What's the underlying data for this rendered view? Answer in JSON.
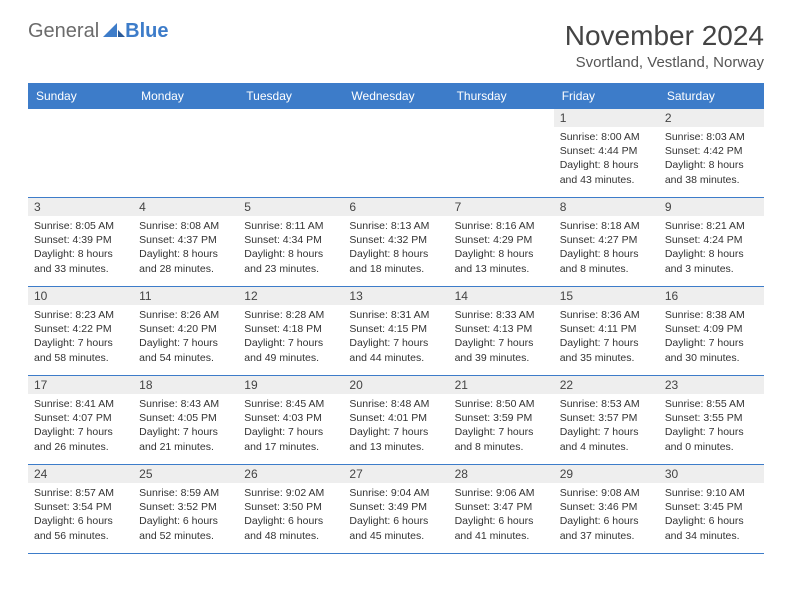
{
  "brand": {
    "word1": "General",
    "word2": "Blue"
  },
  "title": "November 2024",
  "location": "Svortland, Vestland, Norway",
  "colors": {
    "header_bg": "#3d7cc9",
    "header_fg": "#ffffff",
    "daynum_bg": "#eeeeee",
    "rule": "#3d7cc9",
    "text": "#333333",
    "background": "#ffffff"
  },
  "weekdays": [
    "Sunday",
    "Monday",
    "Tuesday",
    "Wednesday",
    "Thursday",
    "Friday",
    "Saturday"
  ],
  "weeks": [
    [
      null,
      null,
      null,
      null,
      null,
      {
        "n": "1",
        "sr": "8:00 AM",
        "ss": "4:44 PM",
        "dl": "8 hours and 43 minutes."
      },
      {
        "n": "2",
        "sr": "8:03 AM",
        "ss": "4:42 PM",
        "dl": "8 hours and 38 minutes."
      }
    ],
    [
      {
        "n": "3",
        "sr": "8:05 AM",
        "ss": "4:39 PM",
        "dl": "8 hours and 33 minutes."
      },
      {
        "n": "4",
        "sr": "8:08 AM",
        "ss": "4:37 PM",
        "dl": "8 hours and 28 minutes."
      },
      {
        "n": "5",
        "sr": "8:11 AM",
        "ss": "4:34 PM",
        "dl": "8 hours and 23 minutes."
      },
      {
        "n": "6",
        "sr": "8:13 AM",
        "ss": "4:32 PM",
        "dl": "8 hours and 18 minutes."
      },
      {
        "n": "7",
        "sr": "8:16 AM",
        "ss": "4:29 PM",
        "dl": "8 hours and 13 minutes."
      },
      {
        "n": "8",
        "sr": "8:18 AM",
        "ss": "4:27 PM",
        "dl": "8 hours and 8 minutes."
      },
      {
        "n": "9",
        "sr": "8:21 AM",
        "ss": "4:24 PM",
        "dl": "8 hours and 3 minutes."
      }
    ],
    [
      {
        "n": "10",
        "sr": "8:23 AM",
        "ss": "4:22 PM",
        "dl": "7 hours and 58 minutes."
      },
      {
        "n": "11",
        "sr": "8:26 AM",
        "ss": "4:20 PM",
        "dl": "7 hours and 54 minutes."
      },
      {
        "n": "12",
        "sr": "8:28 AM",
        "ss": "4:18 PM",
        "dl": "7 hours and 49 minutes."
      },
      {
        "n": "13",
        "sr": "8:31 AM",
        "ss": "4:15 PM",
        "dl": "7 hours and 44 minutes."
      },
      {
        "n": "14",
        "sr": "8:33 AM",
        "ss": "4:13 PM",
        "dl": "7 hours and 39 minutes."
      },
      {
        "n": "15",
        "sr": "8:36 AM",
        "ss": "4:11 PM",
        "dl": "7 hours and 35 minutes."
      },
      {
        "n": "16",
        "sr": "8:38 AM",
        "ss": "4:09 PM",
        "dl": "7 hours and 30 minutes."
      }
    ],
    [
      {
        "n": "17",
        "sr": "8:41 AM",
        "ss": "4:07 PM",
        "dl": "7 hours and 26 minutes."
      },
      {
        "n": "18",
        "sr": "8:43 AM",
        "ss": "4:05 PM",
        "dl": "7 hours and 21 minutes."
      },
      {
        "n": "19",
        "sr": "8:45 AM",
        "ss": "4:03 PM",
        "dl": "7 hours and 17 minutes."
      },
      {
        "n": "20",
        "sr": "8:48 AM",
        "ss": "4:01 PM",
        "dl": "7 hours and 13 minutes."
      },
      {
        "n": "21",
        "sr": "8:50 AM",
        "ss": "3:59 PM",
        "dl": "7 hours and 8 minutes."
      },
      {
        "n": "22",
        "sr": "8:53 AM",
        "ss": "3:57 PM",
        "dl": "7 hours and 4 minutes."
      },
      {
        "n": "23",
        "sr": "8:55 AM",
        "ss": "3:55 PM",
        "dl": "7 hours and 0 minutes."
      }
    ],
    [
      {
        "n": "24",
        "sr": "8:57 AM",
        "ss": "3:54 PM",
        "dl": "6 hours and 56 minutes."
      },
      {
        "n": "25",
        "sr": "8:59 AM",
        "ss": "3:52 PM",
        "dl": "6 hours and 52 minutes."
      },
      {
        "n": "26",
        "sr": "9:02 AM",
        "ss": "3:50 PM",
        "dl": "6 hours and 48 minutes."
      },
      {
        "n": "27",
        "sr": "9:04 AM",
        "ss": "3:49 PM",
        "dl": "6 hours and 45 minutes."
      },
      {
        "n": "28",
        "sr": "9:06 AM",
        "ss": "3:47 PM",
        "dl": "6 hours and 41 minutes."
      },
      {
        "n": "29",
        "sr": "9:08 AM",
        "ss": "3:46 PM",
        "dl": "6 hours and 37 minutes."
      },
      {
        "n": "30",
        "sr": "9:10 AM",
        "ss": "3:45 PM",
        "dl": "6 hours and 34 minutes."
      }
    ]
  ],
  "labels": {
    "sunrise": "Sunrise:",
    "sunset": "Sunset:",
    "daylight": "Daylight:"
  }
}
